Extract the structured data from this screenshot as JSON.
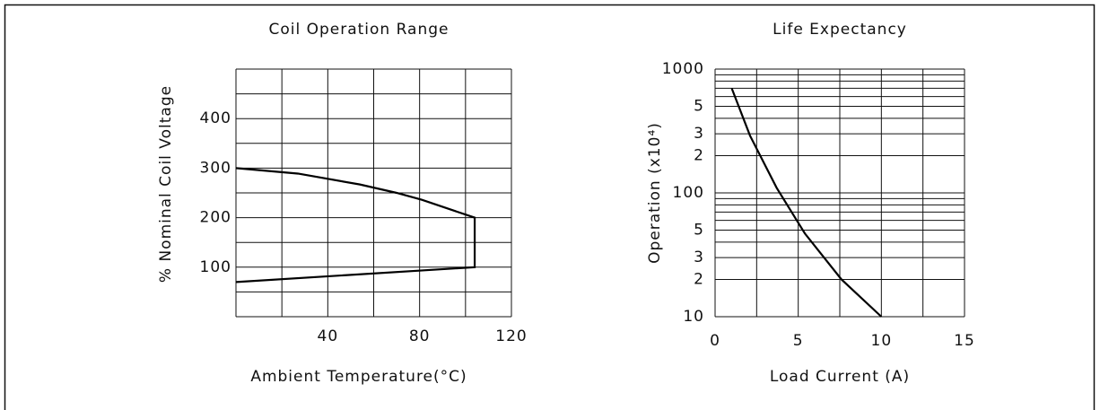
{
  "chart_data": [
    {
      "type": "line",
      "title": "Coil Operation Range",
      "xlabel": "Ambient Temperature(°C)",
      "ylabel": "% Nominal Coil Voltage",
      "xlim": [
        0,
        120
      ],
      "xticks": [
        40,
        80,
        120
      ],
      "xminor": [
        20,
        60,
        100
      ],
      "ylim": [
        0,
        500
      ],
      "yticks": [
        100,
        200,
        300,
        400
      ],
      "yminor": [
        50,
        150,
        250,
        350,
        450
      ],
      "grid": true,
      "log": false,
      "series": [
        {
          "color": "#000000",
          "x": [
            0,
            27,
            54,
            70,
            81,
            104,
            104,
            0
          ],
          "values": [
            300,
            289,
            267,
            250,
            236,
            200,
            100,
            70
          ]
        }
      ]
    },
    {
      "type": "line",
      "title": "Life Expectancy",
      "xlabel": "Load Current (A)",
      "ylabel": "Operation (x10⁴)",
      "xlim": [
        0,
        15
      ],
      "xticks": [
        0,
        5,
        10,
        15
      ],
      "xminor": [
        2.5,
        7.5,
        12.5
      ],
      "ylim": [
        10,
        1000
      ],
      "yticks": [
        10,
        {
          "value": 20,
          "label": "2"
        },
        {
          "value": 30,
          "label": "3"
        },
        {
          "value": 50,
          "label": "5"
        },
        100,
        {
          "value": 200,
          "label": "2"
        },
        {
          "value": 300,
          "label": "3"
        },
        {
          "value": 500,
          "label": "5"
        },
        1000
      ],
      "yminor": [
        40,
        60,
        70,
        80,
        90,
        400,
        600,
        700,
        800,
        900
      ],
      "grid": true,
      "log": true,
      "series": [
        {
          "color": "#000000",
          "x": [
            1,
            2.1,
            3.7,
            5.4,
            7.6,
            10
          ],
          "values": [
            700,
            290,
            110,
            47,
            20,
            10
          ]
        }
      ]
    }
  ]
}
